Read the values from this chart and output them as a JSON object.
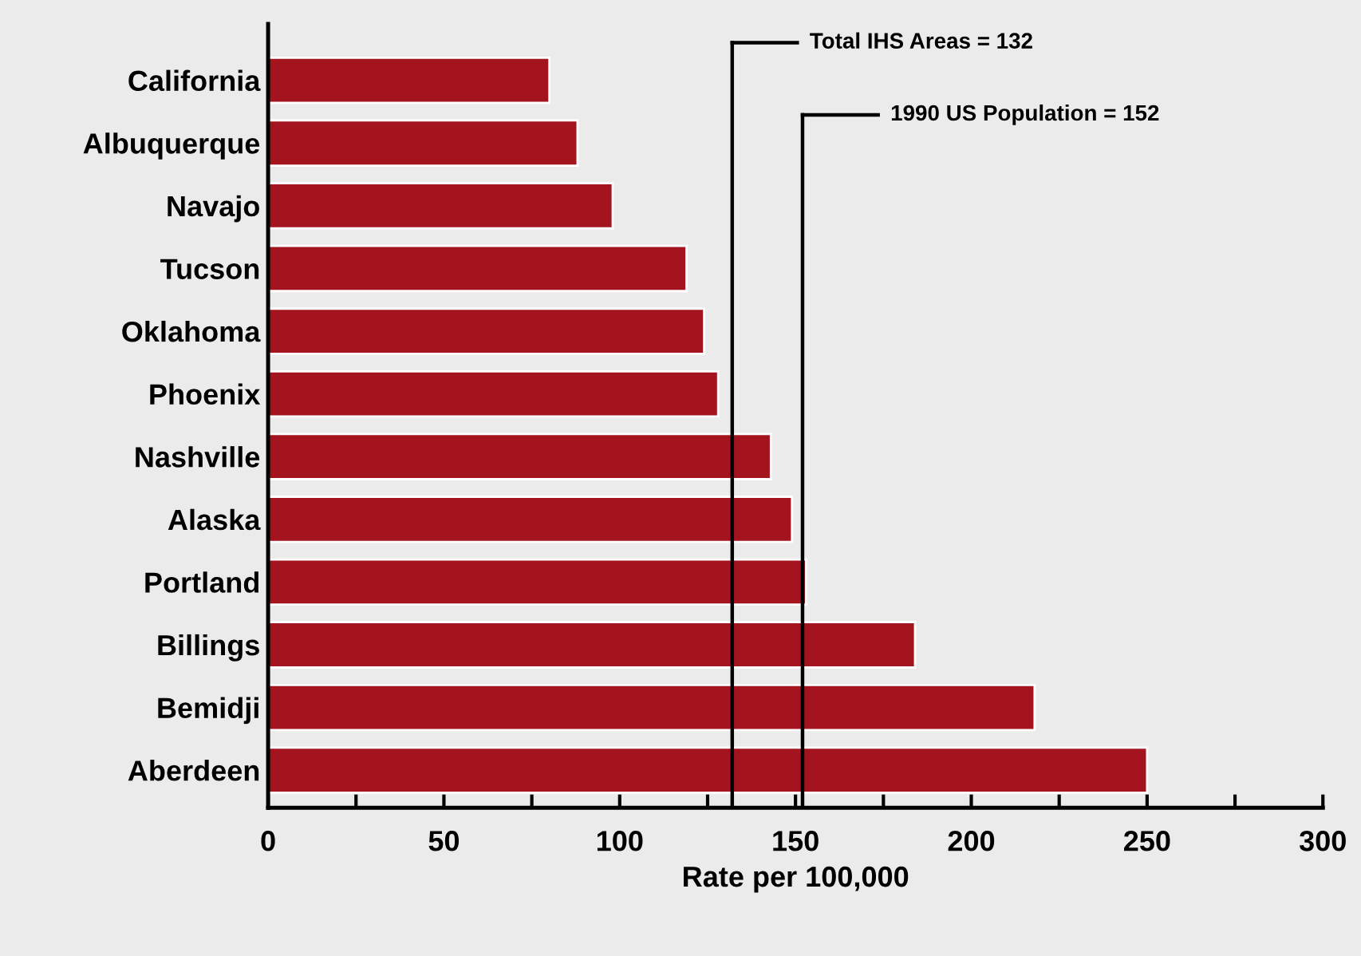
{
  "chart_data": {
    "type": "bar",
    "orientation": "horizontal",
    "xlabel": "Rate per 100,000",
    "categories": [
      "California",
      "Albuquerque",
      "Navajo",
      "Tucson",
      "Oklahoma",
      "Phoenix",
      "Nashville",
      "Alaska",
      "Portland",
      "Billings",
      "Bemidji",
      "Aberdeen"
    ],
    "values": [
      80,
      88,
      98,
      119,
      124,
      128,
      143,
      149,
      153,
      184,
      218,
      250
    ],
    "color": "#a3141f",
    "xlim": [
      0,
      300
    ],
    "xticks": [
      0,
      {
        "value": 25,
        "label": null
      },
      50,
      {
        "value": 75,
        "label": null
      },
      100,
      {
        "value": 125,
        "label": null
      },
      150,
      {
        "value": 175,
        "label": null
      },
      200,
      {
        "value": 225,
        "label": null
      },
      250,
      {
        "value": 275,
        "label": null
      },
      300
    ],
    "ref_lines": [
      {
        "axis": "x",
        "value": 132,
        "label": "Total IHS Areas = 132",
        "color": "#000000"
      },
      {
        "axis": "x",
        "value": 152,
        "label": "1990 US Population = 152",
        "color": "#000000"
      }
    ],
    "grid": false,
    "legend": false
  }
}
